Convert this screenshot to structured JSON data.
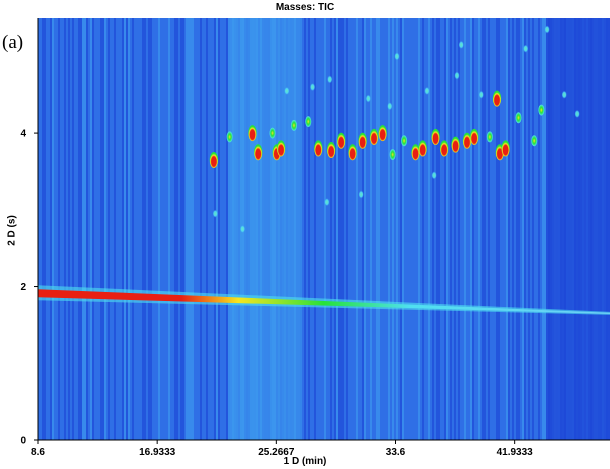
{
  "panel_label": "(a)",
  "colors": {
    "background_deep": "#1a3fd4",
    "background_mid": "#2f6fe6",
    "background_light": "#3fa0f0",
    "band_cyan": "#4fe0f0",
    "band_green": "#27e23a",
    "peak_red": "#e81f12",
    "peak_yellow": "#f6e51f"
  },
  "chart_data": {
    "type": "heatmap",
    "title": "Masses:  TIC",
    "xlabel": "1 D (min)",
    "ylabel": "2 D (s)",
    "xlim": [
      8.6,
      48.6
    ],
    "ylim": [
      0,
      5.5
    ],
    "x_tick_labels": [
      "8.6",
      "16.9333",
      "25.2667",
      "33.6",
      "41.9333"
    ],
    "x_ticks": [
      8.6,
      16.9333,
      25.2667,
      33.6,
      41.9333
    ],
    "y_tick_labels": [
      "0",
      "2",
      "4"
    ],
    "y_ticks": [
      0,
      2,
      4
    ],
    "baseline_band": {
      "x_start": 8.6,
      "y_start": 1.9,
      "x_end": 48.6,
      "y_end": 1.65
    },
    "peaks": [
      {
        "x": 20.9,
        "y": 3.65,
        "intensity": "high"
      },
      {
        "x": 22.0,
        "y": 3.95,
        "intensity": "medium"
      },
      {
        "x": 23.6,
        "y": 4.0,
        "intensity": "high"
      },
      {
        "x": 24.0,
        "y": 3.75,
        "intensity": "high"
      },
      {
        "x": 25.0,
        "y": 4.0,
        "intensity": "medium"
      },
      {
        "x": 25.3,
        "y": 3.75,
        "intensity": "high"
      },
      {
        "x": 25.6,
        "y": 3.8,
        "intensity": "high"
      },
      {
        "x": 26.5,
        "y": 4.1,
        "intensity": "medium"
      },
      {
        "x": 27.5,
        "y": 4.15,
        "intensity": "medium"
      },
      {
        "x": 28.2,
        "y": 3.8,
        "intensity": "high"
      },
      {
        "x": 29.1,
        "y": 3.78,
        "intensity": "high"
      },
      {
        "x": 29.8,
        "y": 3.9,
        "intensity": "high"
      },
      {
        "x": 30.6,
        "y": 3.75,
        "intensity": "high"
      },
      {
        "x": 31.3,
        "y": 3.9,
        "intensity": "high"
      },
      {
        "x": 32.1,
        "y": 3.95,
        "intensity": "high"
      },
      {
        "x": 32.7,
        "y": 4.0,
        "intensity": "high"
      },
      {
        "x": 33.4,
        "y": 3.72,
        "intensity": "medium"
      },
      {
        "x": 34.2,
        "y": 3.9,
        "intensity": "medium"
      },
      {
        "x": 35.0,
        "y": 3.75,
        "intensity": "high"
      },
      {
        "x": 35.5,
        "y": 3.8,
        "intensity": "high"
      },
      {
        "x": 36.4,
        "y": 3.95,
        "intensity": "high"
      },
      {
        "x": 37.0,
        "y": 3.8,
        "intensity": "high"
      },
      {
        "x": 37.8,
        "y": 3.85,
        "intensity": "high"
      },
      {
        "x": 38.6,
        "y": 3.9,
        "intensity": "high"
      },
      {
        "x": 39.1,
        "y": 3.95,
        "intensity": "high"
      },
      {
        "x": 40.2,
        "y": 3.95,
        "intensity": "medium"
      },
      {
        "x": 40.9,
        "y": 3.75,
        "intensity": "high"
      },
      {
        "x": 41.3,
        "y": 3.8,
        "intensity": "high"
      },
      {
        "x": 43.3,
        "y": 3.9,
        "intensity": "medium"
      },
      {
        "x": 40.7,
        "y": 4.45,
        "intensity": "high"
      },
      {
        "x": 42.2,
        "y": 4.2,
        "intensity": "medium"
      },
      {
        "x": 43.8,
        "y": 4.3,
        "intensity": "medium"
      },
      {
        "x": 26.0,
        "y": 4.55,
        "intensity": "low"
      },
      {
        "x": 27.8,
        "y": 4.6,
        "intensity": "low"
      },
      {
        "x": 29.0,
        "y": 4.7,
        "intensity": "low"
      },
      {
        "x": 31.7,
        "y": 4.45,
        "intensity": "low"
      },
      {
        "x": 33.2,
        "y": 4.35,
        "intensity": "low"
      },
      {
        "x": 35.8,
        "y": 4.55,
        "intensity": "low"
      },
      {
        "x": 37.9,
        "y": 4.75,
        "intensity": "low"
      },
      {
        "x": 39.6,
        "y": 4.5,
        "intensity": "low"
      },
      {
        "x": 45.4,
        "y": 4.5,
        "intensity": "low"
      },
      {
        "x": 46.3,
        "y": 4.25,
        "intensity": "low"
      },
      {
        "x": 42.7,
        "y": 5.1,
        "intensity": "low"
      },
      {
        "x": 38.2,
        "y": 5.15,
        "intensity": "low"
      },
      {
        "x": 33.7,
        "y": 5.0,
        "intensity": "low"
      },
      {
        "x": 21.0,
        "y": 2.95,
        "intensity": "low"
      },
      {
        "x": 22.9,
        "y": 2.75,
        "intensity": "low"
      },
      {
        "x": 28.8,
        "y": 3.1,
        "intensity": "low"
      },
      {
        "x": 31.2,
        "y": 3.2,
        "intensity": "low"
      },
      {
        "x": 36.3,
        "y": 3.45,
        "intensity": "low"
      },
      {
        "x": 44.2,
        "y": 5.35,
        "intensity": "low"
      }
    ]
  }
}
